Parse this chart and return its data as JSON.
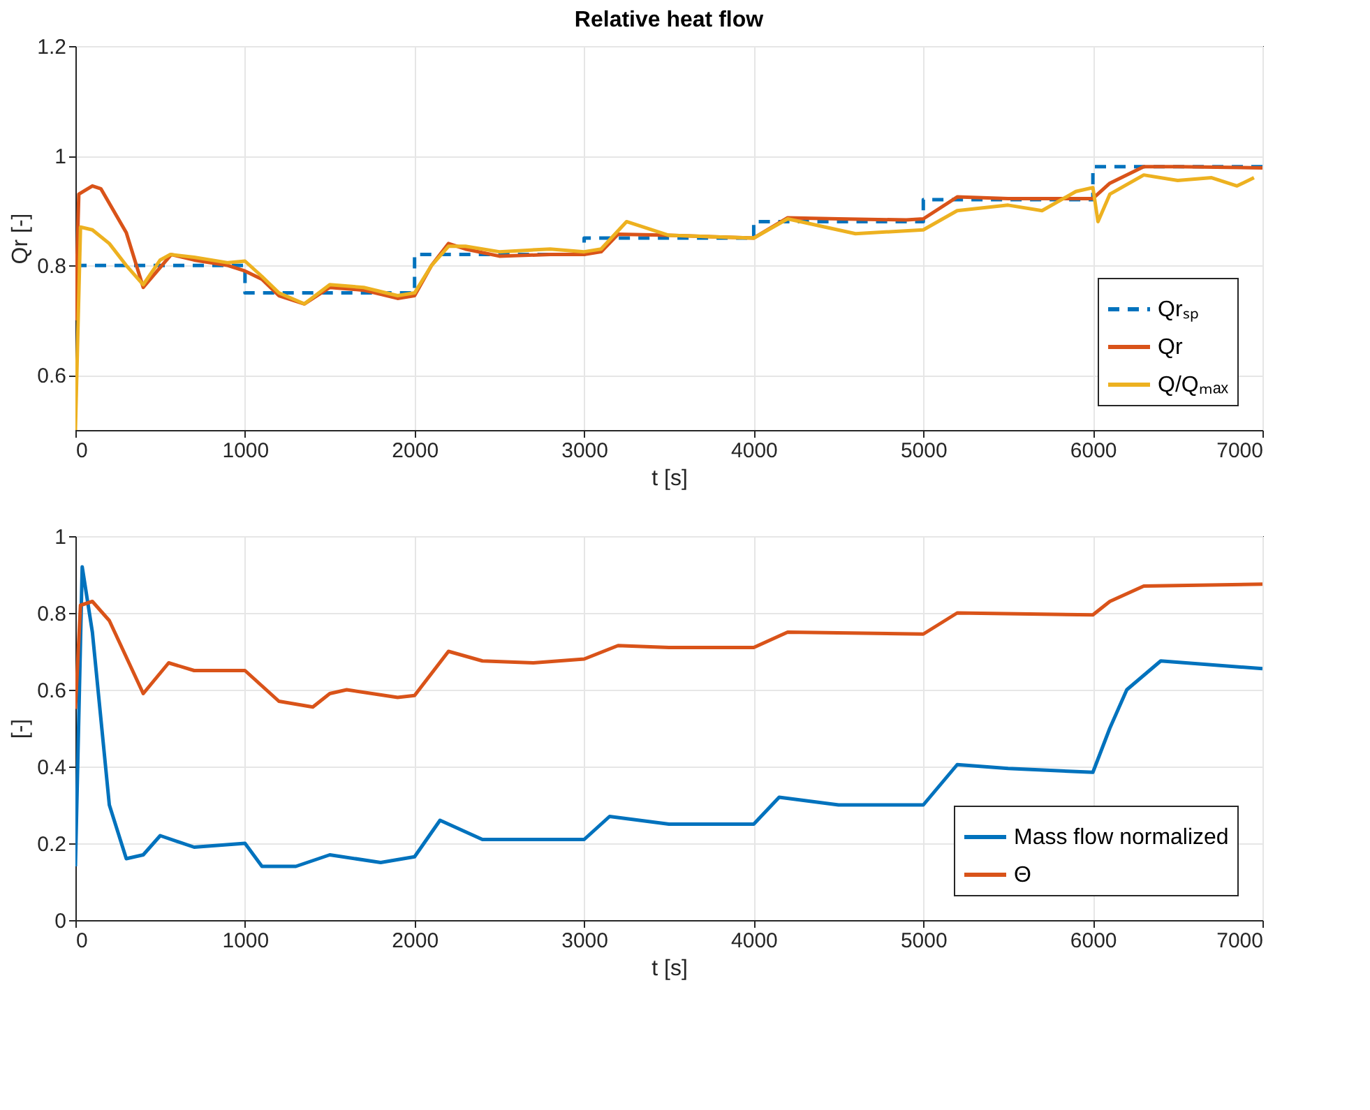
{
  "chart_data": [
    {
      "type": "line",
      "title": "Relative heat flow",
      "xlabel": "t [s]",
      "ylabel": "Qr [-]",
      "xlim": [
        0,
        7000
      ],
      "ylim": [
        0.5,
        1.2
      ],
      "xticks": [
        0,
        1000,
        2000,
        3000,
        4000,
        5000,
        6000,
        7000
      ],
      "yticks": [
        0.6,
        0.8,
        1,
        1.2
      ],
      "grid": true,
      "legend": "bottom right",
      "series": [
        {
          "name": "Qrₛₚ",
          "type": "step",
          "line_style": "dashed",
          "color": "#0072bd",
          "x": [
            0,
            1000,
            2000,
            3000,
            4000,
            5000,
            6000,
            7000
          ],
          "values": [
            0.8,
            0.75,
            0.82,
            0.85,
            0.88,
            0.92,
            0.98,
            0.98
          ]
        },
        {
          "name": "Qr",
          "color": "#d95319",
          "x": [
            0,
            20,
            100,
            150,
            300,
            400,
            565,
            700,
            900,
            1000,
            1100,
            1200,
            1350,
            1500,
            1700,
            1900,
            2000,
            2100,
            2200,
            2300,
            2500,
            2800,
            3000,
            3100,
            3200,
            3500,
            4000,
            4200,
            4500,
            4900,
            5000,
            5200,
            5500,
            6000,
            6100,
            6300,
            6500,
            7000
          ],
          "values": [
            0.7,
            0.93,
            0.945,
            0.94,
            0.86,
            0.76,
            0.82,
            0.81,
            0.8,
            0.79,
            0.775,
            0.745,
            0.73,
            0.76,
            0.755,
            0.74,
            0.745,
            0.8,
            0.84,
            0.83,
            0.817,
            0.82,
            0.82,
            0.825,
            0.857,
            0.855,
            0.85,
            0.887,
            0.885,
            0.883,
            0.885,
            0.925,
            0.922,
            0.922,
            0.95,
            0.98,
            0.98,
            0.978
          ]
        },
        {
          "name": "Q/Qₘₐₓ",
          "color": "#edb120",
          "x": [
            0,
            30,
            100,
            200,
            300,
            400,
            500,
            560,
            700,
            900,
            1000,
            1100,
            1200,
            1350,
            1500,
            1700,
            1900,
            2000,
            2100,
            2200,
            2300,
            2500,
            2800,
            3000,
            3100,
            3250,
            3500,
            4000,
            4200,
            4600,
            5000,
            5200,
            5500,
            5700,
            5900,
            6000,
            6030,
            6100,
            6300,
            6500,
            6700,
            6850,
            6950
          ],
          "values": [
            0.5,
            0.87,
            0.865,
            0.84,
            0.8,
            0.765,
            0.81,
            0.82,
            0.815,
            0.805,
            0.808,
            0.78,
            0.75,
            0.73,
            0.765,
            0.76,
            0.745,
            0.75,
            0.8,
            0.835,
            0.835,
            0.825,
            0.83,
            0.825,
            0.83,
            0.88,
            0.855,
            0.85,
            0.885,
            0.858,
            0.865,
            0.9,
            0.91,
            0.9,
            0.935,
            0.942,
            0.88,
            0.93,
            0.965,
            0.955,
            0.96,
            0.945,
            0.96
          ]
        }
      ]
    },
    {
      "type": "line",
      "xlabel": "t [s]",
      "ylabel": "[-]",
      "xlim": [
        0,
        7000
      ],
      "ylim": [
        0,
        1
      ],
      "xticks": [
        0,
        1000,
        2000,
        3000,
        4000,
        5000,
        6000,
        7000
      ],
      "yticks": [
        0,
        0.2,
        0.4,
        0.6,
        0.8,
        1
      ],
      "grid": true,
      "legend": "bottom right",
      "series": [
        {
          "name": "Mass flow normalized",
          "color": "#0072bd",
          "x": [
            0,
            40,
            100,
            200,
            300,
            400,
            500,
            700,
            1000,
            1100,
            1300,
            1500,
            1800,
            2000,
            2150,
            2400,
            3000,
            3150,
            3500,
            4000,
            4150,
            4500,
            5000,
            5200,
            5500,
            6000,
            6100,
            6200,
            6400,
            7000
          ],
          "values": [
            0.14,
            0.92,
            0.75,
            0.3,
            0.16,
            0.17,
            0.22,
            0.19,
            0.2,
            0.14,
            0.14,
            0.17,
            0.15,
            0.165,
            0.26,
            0.21,
            0.21,
            0.27,
            0.25,
            0.25,
            0.32,
            0.3,
            0.3,
            0.405,
            0.395,
            0.385,
            0.5,
            0.6,
            0.675,
            0.655
          ]
        },
        {
          "name": "Θ",
          "color": "#d95319",
          "x": [
            0,
            30,
            100,
            200,
            400,
            550,
            700,
            1000,
            1200,
            1400,
            1500,
            1600,
            1900,
            2000,
            2200,
            2400,
            2700,
            3000,
            3200,
            3500,
            4000,
            4200,
            5000,
            5200,
            6000,
            6100,
            6300,
            7000
          ],
          "values": [
            0.55,
            0.82,
            0.83,
            0.78,
            0.59,
            0.67,
            0.65,
            0.65,
            0.57,
            0.555,
            0.59,
            0.6,
            0.58,
            0.585,
            0.7,
            0.675,
            0.67,
            0.68,
            0.715,
            0.71,
            0.71,
            0.75,
            0.745,
            0.8,
            0.795,
            0.83,
            0.87,
            0.875
          ]
        }
      ]
    }
  ]
}
